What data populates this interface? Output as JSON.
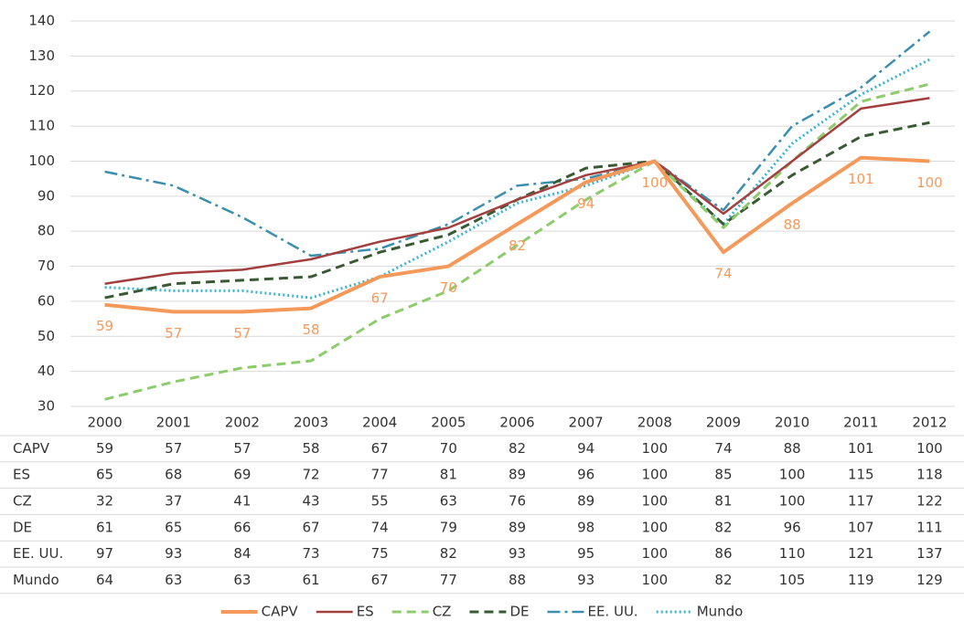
{
  "chart_data": {
    "type": "line",
    "categories": [
      "2000",
      "2001",
      "2002",
      "2003",
      "2004",
      "2005",
      "2006",
      "2007",
      "2008",
      "2009",
      "2010",
      "2011",
      "2012"
    ],
    "ylim": [
      30,
      140
    ],
    "yticks": [
      30,
      40,
      50,
      60,
      70,
      80,
      90,
      100,
      110,
      120,
      130,
      140
    ],
    "grid": true,
    "legend": "bottom",
    "table": true,
    "series": [
      {
        "name": "CAPV",
        "color": "#f4995a",
        "style": "solid",
        "width": 4,
        "data_labels": true,
        "values": [
          59,
          57,
          57,
          58,
          67,
          70,
          82,
          94,
          100,
          74,
          88,
          101,
          100
        ]
      },
      {
        "name": "ES",
        "color": "#a3403f",
        "style": "solid",
        "width": 2.5,
        "values": [
          65,
          68,
          69,
          72,
          77,
          81,
          89,
          96,
          100,
          85,
          100,
          115,
          118
        ]
      },
      {
        "name": "CZ",
        "color": "#8ccc6a",
        "style": "dashed",
        "width": 3,
        "values": [
          32,
          37,
          41,
          43,
          55,
          63,
          76,
          89,
          100,
          81,
          100,
          117,
          122
        ]
      },
      {
        "name": "DE",
        "color": "#3a5a34",
        "style": "dashed",
        "width": 3,
        "values": [
          61,
          65,
          66,
          67,
          74,
          79,
          89,
          98,
          100,
          82,
          96,
          107,
          111
        ]
      },
      {
        "name": "EE. UU.",
        "color": "#3a8faf",
        "style": "dashdot",
        "width": 2.5,
        "values": [
          97,
          93,
          84,
          73,
          75,
          82,
          93,
          95,
          100,
          86,
          110,
          121,
          137
        ]
      },
      {
        "name": "Mundo",
        "color": "#3cb3d4",
        "style": "dotted",
        "width": 3,
        "values": [
          64,
          63,
          63,
          61,
          67,
          77,
          88,
          93,
          100,
          82,
          105,
          119,
          129
        ]
      }
    ]
  }
}
